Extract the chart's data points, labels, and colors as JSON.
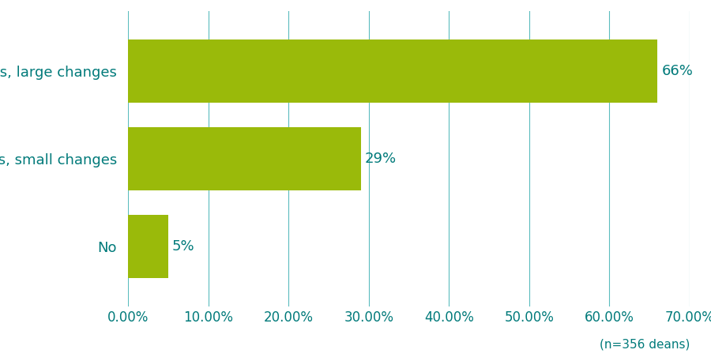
{
  "categories": [
    "No",
    "Yes, small changes",
    "Yes, large changes"
  ],
  "values": [
    0.05,
    0.29,
    0.66
  ],
  "labels": [
    "5%",
    "29%",
    "66%"
  ],
  "bar_color": "#9aba0a",
  "text_color": "#007a7a",
  "grid_color": "#5bbcbe",
  "background_color": "#ffffff",
  "xlim": [
    0,
    0.7
  ],
  "xticks": [
    0.0,
    0.1,
    0.2,
    0.3,
    0.4,
    0.5,
    0.6,
    0.7
  ],
  "xtick_labels": [
    "0.00%",
    "10.00%",
    "20.00%",
    "30.00%",
    "40.00%",
    "50.00%",
    "60.00%",
    "70.00%"
  ],
  "note": "(n=356 deans)",
  "bar_height": 0.72,
  "label_fontsize": 13,
  "tick_fontsize": 12,
  "note_fontsize": 11,
  "ylabel_fontsize": 13
}
